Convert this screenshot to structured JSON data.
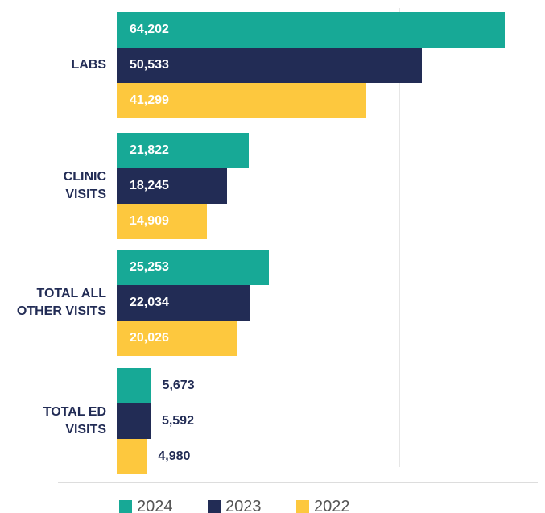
{
  "chart_data": {
    "type": "bar",
    "orientation": "horizontal",
    "categories": [
      "LABS",
      "CLINIC\nVISITS",
      "TOTAL ALL\nOTHER VISITS",
      "TOTAL ED\nVISITS"
    ],
    "series": [
      {
        "name": "2024",
        "color": "#17a996",
        "values": [
          64202,
          21822,
          25253,
          5673
        ],
        "value_labels": [
          "64,202",
          "21,822",
          "25,253",
          "5,673"
        ]
      },
      {
        "name": "2023",
        "color": "#222c55",
        "values": [
          50533,
          18245,
          22034,
          5592
        ],
        "value_labels": [
          "50,533",
          "18,245",
          "22,034",
          "5,592"
        ]
      },
      {
        "name": "2022",
        "color": "#fdc83e",
        "values": [
          41299,
          14909,
          20026,
          4980
        ],
        "value_labels": [
          "41,299",
          "14,909",
          "20,026",
          "4,980"
        ]
      }
    ],
    "xlim": [
      0,
      70000
    ],
    "legend": "bottom"
  }
}
